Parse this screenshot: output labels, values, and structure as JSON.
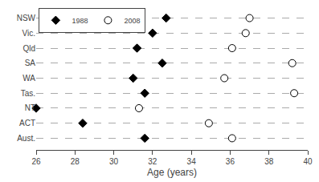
{
  "chart_data": {
    "type": "scatter",
    "categories": [
      "NSW",
      "Vic.",
      "Qld",
      "SA",
      "WA",
      "Tas.",
      "NT",
      "ACT",
      "Aust."
    ],
    "series": [
      {
        "name": "1988",
        "color": "black",
        "marker": "diamond",
        "values": [
          32.7,
          32.0,
          31.2,
          32.5,
          31.0,
          31.6,
          26.0,
          28.4,
          31.6
        ]
      },
      {
        "name": "2008",
        "color": "white",
        "marker": "circle",
        "values": [
          37.0,
          36.8,
          36.1,
          39.2,
          35.7,
          39.3,
          31.3,
          34.9,
          36.1
        ]
      }
    ],
    "xlabel": "Age (years)",
    "xlim": [
      26,
      40
    ],
    "xticks": [
      26,
      28,
      30,
      32,
      34,
      36,
      38,
      40
    ],
    "grid": true,
    "legend": "upper left"
  }
}
